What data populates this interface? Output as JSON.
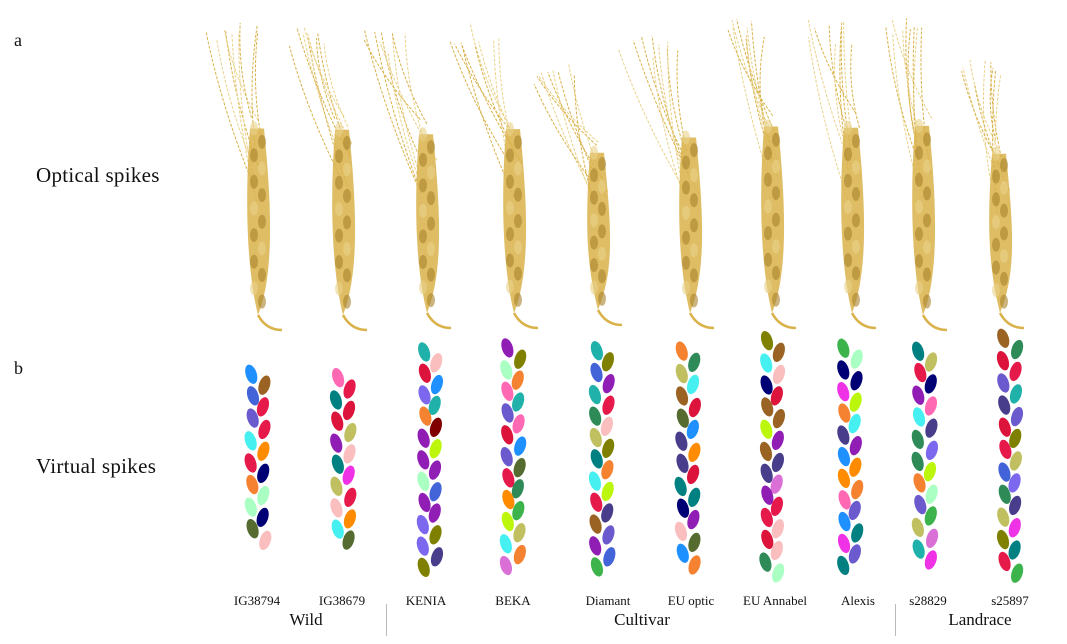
{
  "panels": {
    "a": "a",
    "b": "b"
  },
  "rows": {
    "optical": "Optical spikes",
    "virtual": "Virtual spikes"
  },
  "varieties": [
    "IG38794",
    "IG38679",
    "KENIA",
    "BEKA",
    "Diamant",
    "EU optic",
    "EU Annabel",
    "Alexis",
    "s28829",
    "s25897"
  ],
  "groups": [
    "Wild",
    "Cultivar",
    "Landrace"
  ],
  "colors": {
    "spike_gold": "#d9b24a",
    "spike_light": "#e9d28a",
    "spike_dark": "#a9822c"
  }
}
